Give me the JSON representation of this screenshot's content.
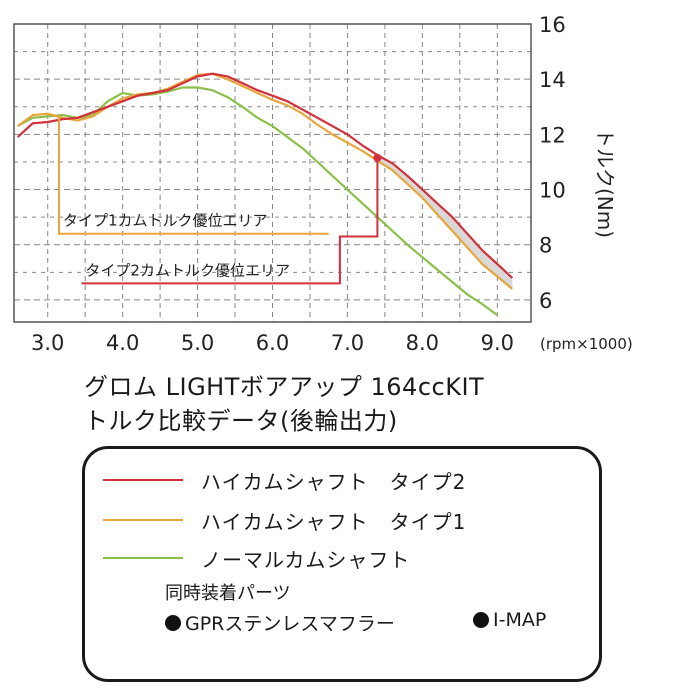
{
  "chart_data": {
    "type": "line",
    "x_ticks": [
      "3.0",
      "4.0",
      "5.0",
      "6.0",
      "7.0",
      "8.0",
      "9.0"
    ],
    "y_ticks": [
      "6",
      "8",
      "10",
      "12",
      "14",
      "16"
    ],
    "xunit": "(rpm×1000)",
    "ylabel": "トルク(Nm)",
    "xlim": [
      2.55,
      9.45
    ],
    "ylim": [
      5.2,
      16.0
    ],
    "grid": true,
    "series": [
      {
        "name": "ハイカムシャフト　タイプ2",
        "color": "#d2303a",
        "x": [
          2.6,
          2.8,
          3.0,
          3.2,
          3.4,
          3.6,
          3.8,
          4.0,
          4.2,
          4.4,
          4.6,
          4.8,
          5.0,
          5.2,
          5.4,
          5.6,
          5.8,
          6.0,
          6.2,
          6.4,
          6.6,
          6.8,
          7.0,
          7.2,
          7.4,
          7.6,
          7.8,
          8.0,
          8.2,
          8.4,
          8.6,
          8.8,
          9.0,
          9.2
        ],
        "y": [
          11.9,
          12.4,
          12.45,
          12.55,
          12.6,
          12.8,
          13.0,
          13.2,
          13.4,
          13.5,
          13.6,
          13.85,
          14.1,
          14.2,
          14.1,
          13.85,
          13.6,
          13.4,
          13.2,
          12.9,
          12.6,
          12.3,
          12.0,
          11.6,
          11.25,
          10.95,
          10.5,
          10.0,
          9.5,
          9.0,
          8.4,
          7.8,
          7.3,
          6.8
        ]
      },
      {
        "name": "ハイカムシャフト　タイプ1",
        "color": "#e8a63c",
        "x": [
          2.6,
          2.8,
          3.0,
          3.2,
          3.4,
          3.6,
          3.8,
          4.0,
          4.2,
          4.4,
          4.6,
          4.8,
          5.0,
          5.2,
          5.4,
          5.6,
          5.8,
          6.0,
          6.2,
          6.4,
          6.6,
          6.8,
          7.0,
          7.2,
          7.4,
          7.6,
          7.8,
          8.0,
          8.2,
          8.4,
          8.6,
          8.8,
          9.0,
          9.2
        ],
        "y": [
          12.3,
          12.7,
          12.75,
          12.6,
          12.5,
          12.65,
          13.0,
          13.3,
          13.45,
          13.5,
          13.65,
          13.9,
          14.15,
          14.2,
          14.0,
          13.75,
          13.5,
          13.25,
          13.05,
          12.75,
          12.35,
          12.0,
          11.7,
          11.4,
          11.05,
          10.7,
          10.2,
          9.7,
          9.1,
          8.5,
          7.9,
          7.3,
          6.85,
          6.4
        ]
      },
      {
        "name": "ノーマルカムシャフト",
        "color": "#8cc04a",
        "x": [
          2.6,
          2.8,
          3.0,
          3.2,
          3.4,
          3.6,
          3.8,
          4.0,
          4.2,
          4.4,
          4.6,
          4.8,
          5.0,
          5.2,
          5.4,
          5.6,
          5.8,
          6.0,
          6.2,
          6.4,
          6.6,
          6.8,
          7.0,
          7.2,
          7.4,
          7.6,
          7.8,
          8.0,
          8.2,
          8.4,
          8.6,
          8.8,
          9.0
        ],
        "y": [
          12.3,
          12.6,
          12.65,
          12.7,
          12.6,
          12.7,
          13.2,
          13.5,
          13.4,
          13.45,
          13.55,
          13.7,
          13.7,
          13.6,
          13.35,
          13.0,
          12.6,
          12.3,
          11.9,
          11.5,
          11.0,
          10.5,
          10.0,
          9.5,
          9.0,
          8.5,
          8.0,
          7.55,
          7.1,
          6.65,
          6.2,
          5.85,
          5.45
        ]
      }
    ],
    "annotations": [
      {
        "text": "タイプ1カムトルク優位エリア",
        "color": "#e8a63c",
        "bracket_x": [
          3.15,
          6.75
        ],
        "bracket_y_top": 12.65,
        "bracket_y_bottom": 8.4
      },
      {
        "text": "タイプ2カムトルク優位エリア",
        "color": "#d2303a",
        "bracket_x": [
          3.45,
          7.4
        ],
        "bracket_y_top": 11.15,
        "bracket_y_bottom": 6.6,
        "step_x": 6.9,
        "step_y": 8.3
      }
    ]
  },
  "title_lines": [
    "グロム LIGHTボアアップ 164ccKIT",
    "トルク比較データ(後輪出力)"
  ],
  "legend": {
    "items": [
      {
        "label": "ハイカムシャフト　タイプ2",
        "color": "#d2303a"
      },
      {
        "label": "ハイカムシャフト　タイプ1",
        "color": "#e8a63c"
      },
      {
        "label": "ノーマルカムシャフト",
        "color": "#8cc04a"
      }
    ],
    "parts_title": "同時装着パーツ",
    "parts": [
      "GPRステンレスマフラー",
      "I-MAP"
    ]
  }
}
